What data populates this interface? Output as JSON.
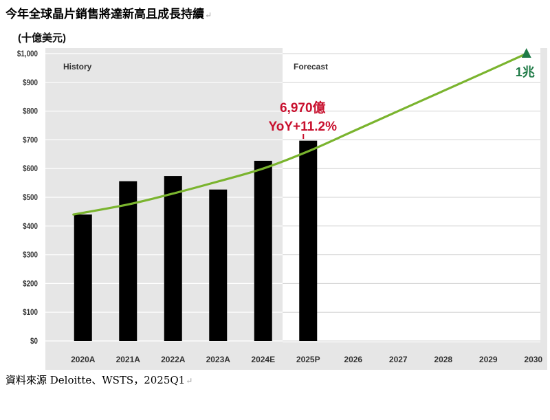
{
  "title": "今年全球晶片銷售將達新高且成長持續",
  "return_mark": "↵",
  "units_label": "(十億美元)",
  "source": "資料來源 Deloitte、WSTS，2025Q1",
  "chart_data": {
    "type": "bar",
    "categories": [
      "2020A",
      "2021A",
      "2022A",
      "2023A",
      "2024E",
      "2025P",
      "2026",
      "2027",
      "2028",
      "2029",
      "2030"
    ],
    "values": [
      440,
      556,
      574,
      527,
      627,
      697,
      null,
      null,
      null,
      null,
      null
    ],
    "y_ticks": [
      "$0",
      "$100",
      "$200",
      "$300",
      "$400",
      "$500",
      "$600",
      "$700",
      "$800",
      "$900",
      "$1,000"
    ],
    "ylim": [
      0,
      1000
    ],
    "grid": true,
    "regions": {
      "history_label": "History",
      "forecast_label": "Forecast"
    },
    "trend_line": {
      "x": [
        "2020A",
        "2021A",
        "2022A",
        "2023A",
        "2024E",
        "2025P",
        "2026",
        "2027",
        "2028",
        "2029",
        "2030"
      ],
      "values": [
        440,
        475,
        513,
        555,
        600,
        660,
        730,
        800,
        870,
        940,
        1000
      ]
    },
    "annotations": {
      "bar_value": "6,970億",
      "yoy": "YoY+11.2%",
      "target": "1兆"
    },
    "colors": {
      "bars": "#000000",
      "trend": "#7AB42E",
      "target_marker": "#1E7A46",
      "annotation_text": "#C8102E",
      "history_bg": "#E6E6E6",
      "forecast_bg": "#FFFFFF",
      "grid": "#FFFFFF",
      "forecast_grid": "#D0D0D0"
    }
  }
}
